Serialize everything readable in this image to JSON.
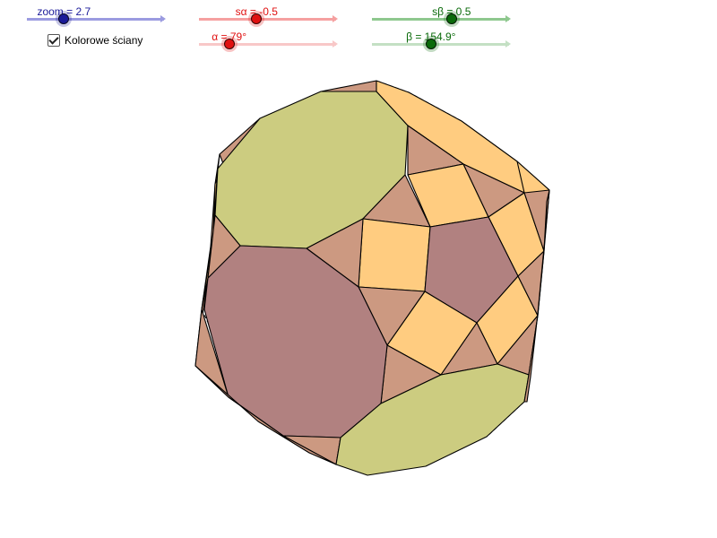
{
  "sliders": [
    {
      "id": "zoom",
      "label": "zoom = 2.7",
      "color": "#1a1a99",
      "track_color": "#9b9be0",
      "fraction": 0.27
    },
    {
      "id": "s_alpha",
      "label": "sα = -0.5",
      "color": "#e01010",
      "track_color": "#f5a0a0",
      "fraction": 0.42
    },
    {
      "id": "alpha",
      "label": "α = 79°",
      "color": "#e01010",
      "track_color": "#f8c8c8",
      "fraction": 0.22
    },
    {
      "id": "s_beta",
      "label": "sβ = 0.5",
      "color": "#0a6a0a",
      "track_color": "#8ec88e",
      "fraction": 0.58
    },
    {
      "id": "beta",
      "label": "β = 154.9°",
      "color": "#0a6a0a",
      "track_color": "#c4e0c4",
      "fraction": 0.43
    }
  ],
  "checkbox": {
    "label": "Kolorowe ściany",
    "checked": true
  },
  "face_colors": {
    "olive": "#cccc80",
    "mauve": "#b18180",
    "tan": "#cc9981",
    "orange": "#ffcc80"
  }
}
